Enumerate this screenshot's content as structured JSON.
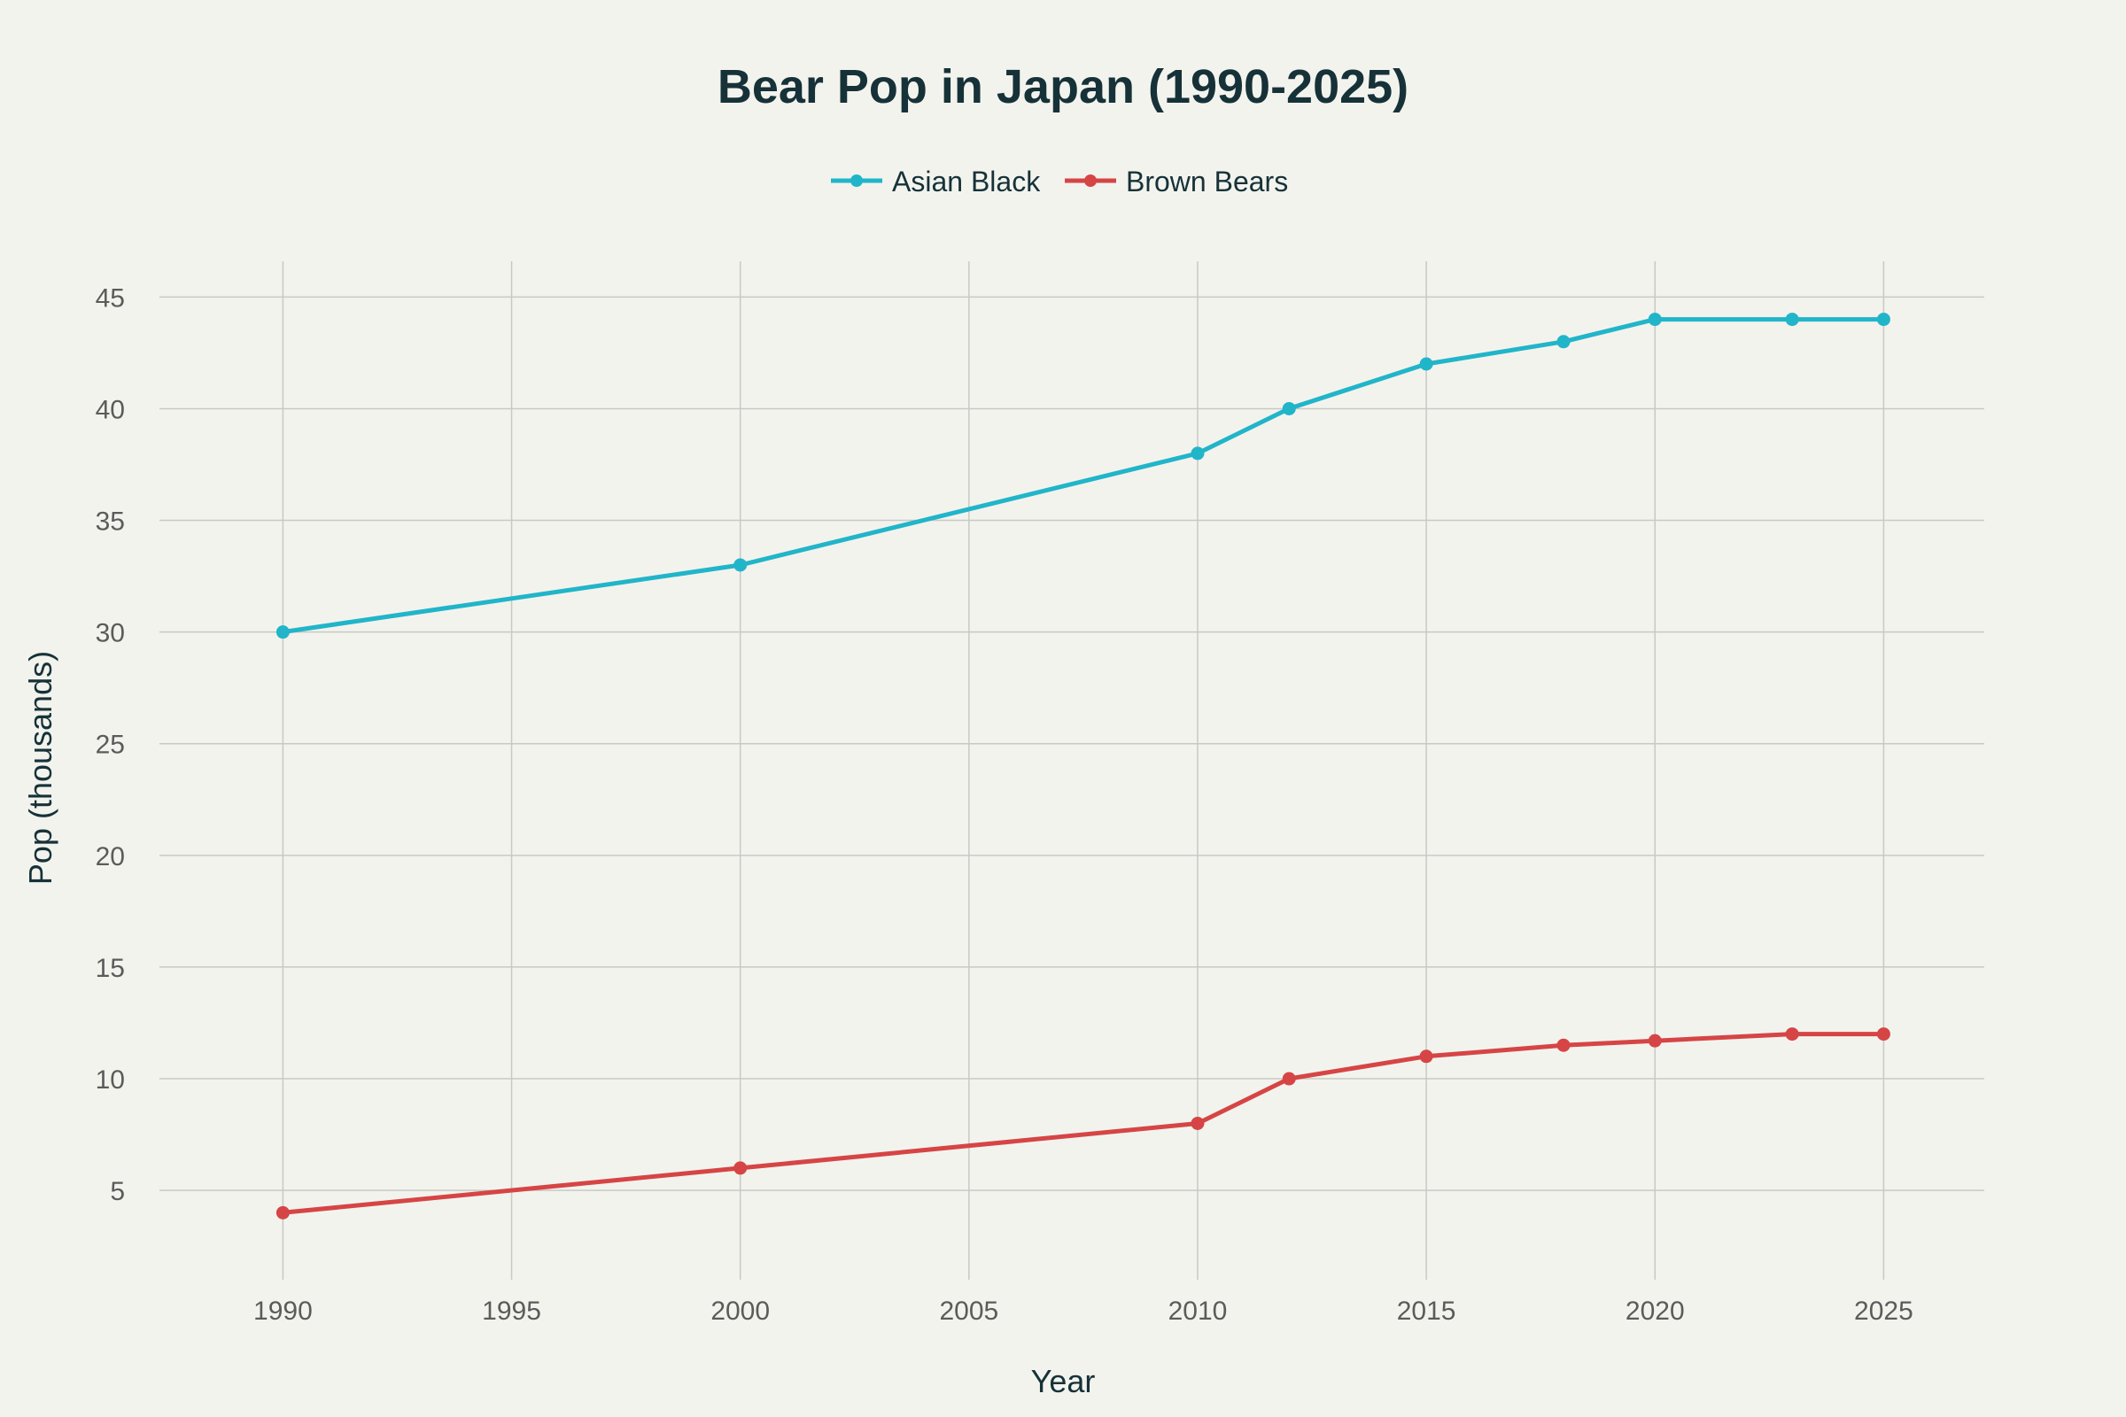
{
  "chart_data": {
    "type": "line",
    "title": "Bear Pop in Japan (1990-2025)",
    "xlabel": "Year",
    "ylabel": "Pop (thousands)",
    "x": [
      1990,
      2000,
      2010,
      2012,
      2015,
      2018,
      2020,
      2023,
      2025
    ],
    "xticks": [
      1990,
      1995,
      2000,
      2005,
      2010,
      2015,
      2020,
      2025
    ],
    "yticks": [
      5,
      10,
      15,
      20,
      25,
      30,
      35,
      40,
      45
    ],
    "xlim": [
      1987.3,
      2027.2
    ],
    "ylim": [
      1.0,
      46.6
    ],
    "grid": true,
    "legend_position": "top-center",
    "series": [
      {
        "name": "Asian Black",
        "color": "#21b5c9",
        "values": [
          30,
          33,
          38,
          40,
          42,
          43,
          44,
          44,
          44
        ]
      },
      {
        "name": "Brown Bears",
        "color": "#d64545",
        "values": [
          4,
          6,
          8,
          10,
          11,
          11.5,
          11.7,
          12,
          12
        ]
      }
    ]
  }
}
